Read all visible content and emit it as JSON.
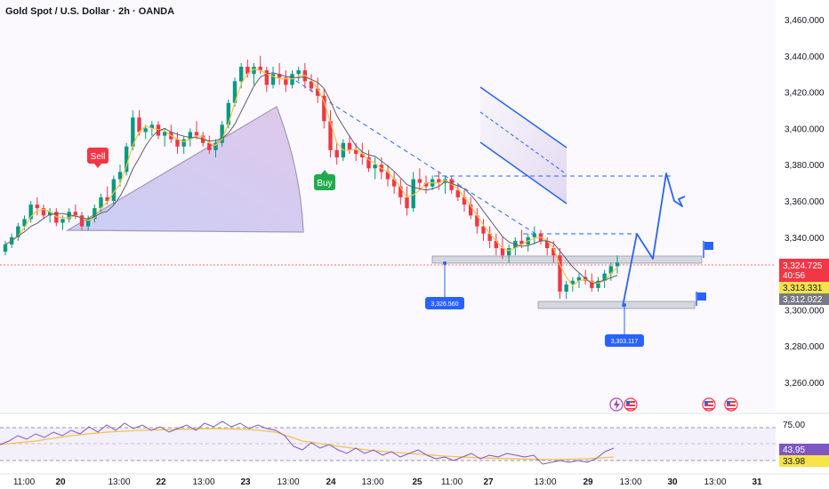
{
  "header": {
    "title": "Gold Spot / U.S. Dollar · 2h · OANDA"
  },
  "price_axis": {
    "ticks": [
      "3,460.000",
      "3,440.000",
      "3,420.000",
      "3,400.000",
      "3,380.000",
      "3,360.000",
      "3,340.000",
      "3,300.000",
      "3,280.000",
      "3,260.000"
    ],
    "tick_values": [
      3460,
      3440,
      3420,
      3400,
      3380,
      3360,
      3340,
      3300,
      3280,
      3260
    ],
    "tags": [
      {
        "name": "last-price-tag",
        "value": "3,324.725",
        "sub": "40:56",
        "color": "#f23645",
        "text_color": "#ffffff"
      },
      {
        "name": "ma-yellow-tag",
        "value": "3,313.331",
        "color": "#f6e34a",
        "text_color": "#131722"
      },
      {
        "name": "ma-gray-tag",
        "value": "3,312.022",
        "color": "#787b86",
        "text_color": "#ffffff"
      }
    ]
  },
  "time_axis": {
    "labels": [
      {
        "text": "11:00",
        "bold": false
      },
      {
        "text": "20",
        "bold": true
      },
      {
        "text": "13:00",
        "bold": false
      },
      {
        "text": "22",
        "bold": true
      },
      {
        "text": "13:00",
        "bold": false
      },
      {
        "text": "23",
        "bold": true
      },
      {
        "text": "13:00",
        "bold": false
      },
      {
        "text": "24",
        "bold": true
      },
      {
        "text": "13:00",
        "bold": false
      },
      {
        "text": "25",
        "bold": true
      },
      {
        "text": "11:00",
        "bold": false
      },
      {
        "text": "27",
        "bold": true
      },
      {
        "text": "13:00",
        "bold": false
      },
      {
        "text": "29",
        "bold": true
      },
      {
        "text": "13:00",
        "bold": false
      },
      {
        "text": "30",
        "bold": true
      },
      {
        "text": "13:00",
        "bold": false
      },
      {
        "text": "31",
        "bold": true
      }
    ]
  },
  "annotations": {
    "sell_label": "Sell",
    "buy_label": "Buy",
    "low_label_1": "3,326.560",
    "low_label_2": "3,303.117"
  },
  "rsi": {
    "levels": [
      "75.00"
    ],
    "tags": [
      {
        "name": "rsi-value-tag",
        "value": "43.95",
        "color": "#7e57c2",
        "text_color": "#ffffff"
      },
      {
        "name": "rsi-ma-tag",
        "value": "33.98",
        "color": "#f6e34a",
        "text_color": "#131722"
      }
    ]
  },
  "colors": {
    "up": "#089981",
    "down": "#f23645",
    "ma_yellow": "#f6c343",
    "ma_gray": "#5d606b",
    "drawing": "#2962ff",
    "rsi": "#7e57c2"
  },
  "chart_data": {
    "type": "candlestick",
    "title": "Gold Spot / U.S. Dollar · 2h · OANDA",
    "ylim": [
      3240,
      3470
    ],
    "candles": [
      [
        3332,
        3338,
        3330,
        3336
      ],
      [
        3336,
        3342,
        3334,
        3340
      ],
      [
        3340,
        3348,
        3338,
        3346
      ],
      [
        3346,
        3352,
        3344,
        3350
      ],
      [
        3350,
        3360,
        3348,
        3358
      ],
      [
        3358,
        3362,
        3352,
        3356
      ],
      [
        3356,
        3358,
        3350,
        3352
      ],
      [
        3352,
        3356,
        3348,
        3354
      ],
      [
        3354,
        3356,
        3346,
        3348
      ],
      [
        3348,
        3352,
        3344,
        3350
      ],
      [
        3350,
        3356,
        3348,
        3354
      ],
      [
        3354,
        3358,
        3350,
        3352
      ],
      [
        3352,
        3354,
        3344,
        3346
      ],
      [
        3346,
        3352,
        3344,
        3350
      ],
      [
        3350,
        3358,
        3348,
        3356
      ],
      [
        3356,
        3364,
        3354,
        3362
      ],
      [
        3362,
        3368,
        3358,
        3360
      ],
      [
        3360,
        3374,
        3358,
        3372
      ],
      [
        3372,
        3380,
        3368,
        3376
      ],
      [
        3376,
        3392,
        3374,
        3390
      ],
      [
        3390,
        3410,
        3388,
        3406
      ],
      [
        3406,
        3410,
        3396,
        3398
      ],
      [
        3398,
        3402,
        3394,
        3400
      ],
      [
        3400,
        3404,
        3396,
        3402
      ],
      [
        3402,
        3404,
        3394,
        3396
      ],
      [
        3396,
        3400,
        3390,
        3398
      ],
      [
        3398,
        3402,
        3392,
        3394
      ],
      [
        3394,
        3398,
        3386,
        3390
      ],
      [
        3390,
        3396,
        3386,
        3394
      ],
      [
        3394,
        3400,
        3390,
        3398
      ],
      [
        3398,
        3404,
        3394,
        3396
      ],
      [
        3396,
        3398,
        3390,
        3392
      ],
      [
        3392,
        3396,
        3386,
        3388
      ],
      [
        3388,
        3394,
        3384,
        3392
      ],
      [
        3392,
        3404,
        3390,
        3402
      ],
      [
        3402,
        3416,
        3400,
        3414
      ],
      [
        3414,
        3428,
        3412,
        3426
      ],
      [
        3426,
        3436,
        3422,
        3434
      ],
      [
        3434,
        3438,
        3428,
        3430
      ],
      [
        3430,
        3436,
        3424,
        3434
      ],
      [
        3434,
        3440,
        3430,
        3432
      ],
      [
        3432,
        3434,
        3420,
        3424
      ],
      [
        3424,
        3434,
        3422,
        3430
      ],
      [
        3430,
        3436,
        3424,
        3428
      ],
      [
        3428,
        3432,
        3420,
        3424
      ],
      [
        3424,
        3432,
        3422,
        3430
      ],
      [
        3430,
        3434,
        3426,
        3432
      ],
      [
        3432,
        3436,
        3422,
        3426
      ],
      [
        3426,
        3430,
        3420,
        3422
      ],
      [
        3422,
        3428,
        3414,
        3418
      ],
      [
        3418,
        3422,
        3400,
        3404
      ],
      [
        3404,
        3410,
        3384,
        3388
      ],
      [
        3388,
        3392,
        3380,
        3384
      ],
      [
        3384,
        3394,
        3382,
        3392
      ],
      [
        3392,
        3396,
        3386,
        3388
      ],
      [
        3388,
        3392,
        3382,
        3386
      ],
      [
        3386,
        3392,
        3380,
        3384
      ],
      [
        3384,
        3388,
        3376,
        3378
      ],
      [
        3378,
        3384,
        3372,
        3380
      ],
      [
        3380,
        3384,
        3372,
        3376
      ],
      [
        3376,
        3380,
        3368,
        3372
      ],
      [
        3372,
        3376,
        3364,
        3368
      ],
      [
        3368,
        3372,
        3358,
        3362
      ],
      [
        3362,
        3368,
        3352,
        3356
      ],
      [
        3356,
        3376,
        3354,
        3372
      ],
      [
        3372,
        3378,
        3366,
        3370
      ],
      [
        3370,
        3374,
        3364,
        3368
      ],
      [
        3368,
        3374,
        3366,
        3372
      ],
      [
        3372,
        3376,
        3366,
        3370
      ],
      [
        3370,
        3374,
        3364,
        3372
      ],
      [
        3372,
        3374,
        3364,
        3366
      ],
      [
        3366,
        3370,
        3360,
        3362
      ],
      [
        3362,
        3366,
        3354,
        3358
      ],
      [
        3358,
        3362,
        3350,
        3352
      ],
      [
        3352,
        3356,
        3342,
        3346
      ],
      [
        3346,
        3350,
        3338,
        3342
      ],
      [
        3342,
        3346,
        3334,
        3338
      ],
      [
        3338,
        3342,
        3330,
        3334
      ],
      [
        3334,
        3340,
        3328,
        3330
      ],
      [
        3330,
        3336,
        3326,
        3334
      ],
      [
        3334,
        3340,
        3330,
        3338
      ],
      [
        3338,
        3344,
        3334,
        3336
      ],
      [
        3336,
        3342,
        3332,
        3340
      ],
      [
        3340,
        3346,
        3336,
        3342
      ],
      [
        3342,
        3344,
        3336,
        3338
      ],
      [
        3338,
        3340,
        3330,
        3334
      ],
      [
        3334,
        3338,
        3326,
        3330
      ],
      [
        3330,
        3334,
        3306,
        3310
      ],
      [
        3310,
        3316,
        3306,
        3314
      ],
      [
        3314,
        3318,
        3310,
        3316
      ],
      [
        3316,
        3320,
        3312,
        3318
      ],
      [
        3318,
        3322,
        3314,
        3316
      ],
      [
        3316,
        3320,
        3310,
        3312
      ],
      [
        3312,
        3318,
        3310,
        3316
      ],
      [
        3316,
        3322,
        3312,
        3320
      ],
      [
        3320,
        3326,
        3316,
        3324
      ],
      [
        3324,
        3330,
        3320,
        3326
      ]
    ]
  }
}
